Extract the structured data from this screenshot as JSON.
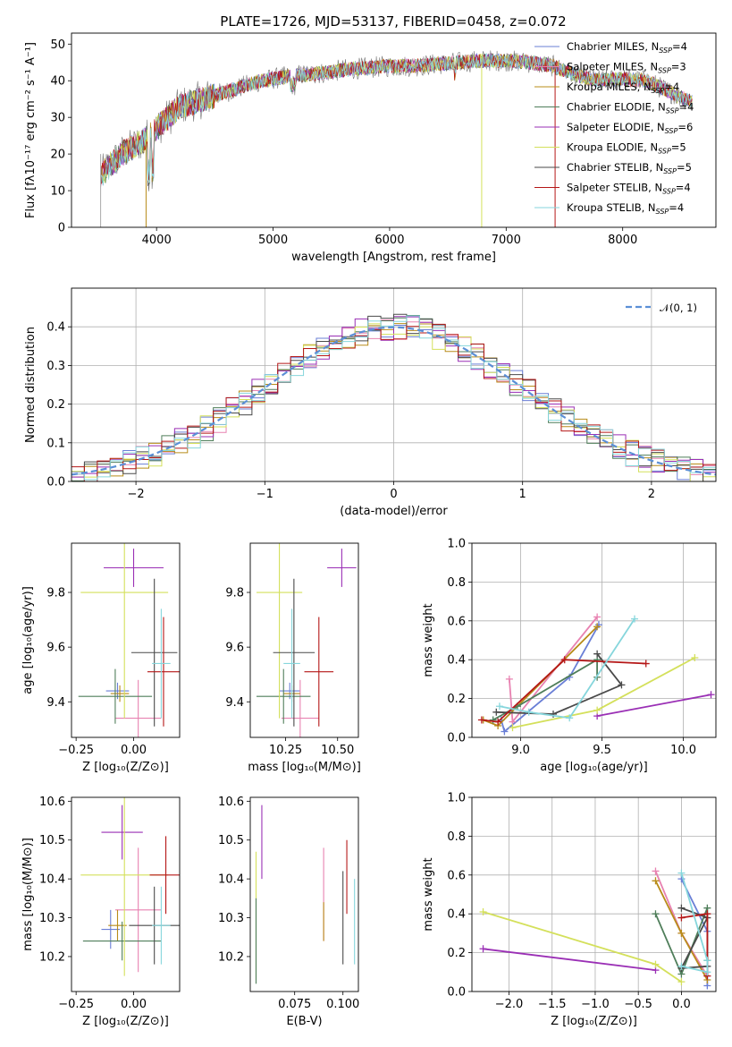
{
  "figure": {
    "title": "PLATE=1726, MJD=53137, FIBERID=0458, z=0.072"
  },
  "chart_data": [
    {
      "id": "spectrum",
      "type": "line",
      "xlabel": "wavelength [Angstrom, rest frame]",
      "ylabel": "Flux [fλ10⁻¹⁷ erg cm⁻² s⁻¹ A⁻¹]",
      "xlim": [
        3270,
        8800
      ],
      "ylim": [
        0,
        53
      ],
      "xticks": [
        4000,
        5000,
        6000,
        7000,
        8000
      ],
      "yticks": [
        0,
        10,
        20,
        30,
        40,
        50
      ],
      "legend_position": "upper right",
      "continuum": {
        "x": [
          3520,
          3600,
          3700,
          3800,
          3900,
          4000,
          4100,
          4200,
          4300,
          4400,
          4500,
          4600,
          4700,
          4800,
          4900,
          5000,
          5200,
          5400,
          5600,
          5800,
          6000,
          6200,
          6400,
          6600,
          6800,
          7000,
          7200,
          7400,
          7600,
          7800,
          8000,
          8200,
          8400,
          8600
        ],
        "y": [
          14,
          17,
          20,
          22,
          24,
          27,
          30,
          33,
          34,
          35,
          36,
          37,
          38,
          39,
          40,
          40.5,
          41.5,
          42,
          43,
          43.5,
          44,
          44,
          44.5,
          45,
          45.5,
          45.5,
          45,
          44,
          41.5,
          40,
          40.5,
          40,
          37,
          34
        ]
      },
      "series": [
        {
          "name": "Chabrier MILES, N_SSP=4",
          "label": "Chabrier MILES, N",
          "n": "4",
          "color": "#6a7fd6"
        },
        {
          "name": "Salpeter MILES, N_SSP=3",
          "label": "Salpeter MILES, N",
          "n": "3",
          "color": "#e882b1"
        },
        {
          "name": "Kroupa MILES, N_SSP=4",
          "label": "Kroupa MILES, N",
          "n": "4",
          "color": "#b88c1a"
        },
        {
          "name": "Chabrier ELODIE, N_SSP=4",
          "label": "Chabrier ELODIE, N",
          "n": "4",
          "color": "#4f7e5a"
        },
        {
          "name": "Salpeter ELODIE, N_SSP=6",
          "label": "Salpeter ELODIE, N",
          "n": "6",
          "color": "#9a2fb5"
        },
        {
          "name": "Kroupa ELODIE, N_SSP=5",
          "label": "Kroupa ELODIE, N",
          "n": "5",
          "color": "#d4e05b"
        },
        {
          "name": "Chabrier STELIB, N_SSP=5",
          "label": "Chabrier STELIB, N",
          "n": "5",
          "color": "#4a4a4a"
        },
        {
          "name": "Salpeter STELIB, N_SSP=4",
          "label": "Salpeter STELIB, N",
          "n": "4",
          "color": "#b51717"
        },
        {
          "name": "Kroupa STELIB, N_SSP=4",
          "label": "Kroupa STELIB, N",
          "n": "4",
          "color": "#86d6dc"
        }
      ],
      "legend_sub": "SSP"
    },
    {
      "id": "residuals",
      "type": "line",
      "xlabel": "(data-model)/error",
      "ylabel": "Normed distribution",
      "xlim": [
        -2.5,
        2.5
      ],
      "ylim": [
        0,
        0.5
      ],
      "xticks": [
        -2,
        -1,
        0,
        1,
        2
      ],
      "yticks": [
        0.0,
        0.1,
        0.2,
        0.3,
        0.4
      ],
      "grid": true,
      "legend_label": "𝒩(0, 1)",
      "legend_position": "upper right"
    },
    {
      "id": "Z-age",
      "type": "scatter",
      "xlabel": "Z [log₁₀(Z/Z⊙)]",
      "ylabel": "age  [log₁₀(age/yr)]",
      "xlim": [
        -0.27,
        0.2
      ],
      "ylim": [
        9.27,
        9.98
      ],
      "xticks": [
        -0.25,
        0.0
      ],
      "yticks": [
        9.4,
        9.6,
        9.8
      ],
      "points": [
        {
          "c": 0,
          "x": -0.07,
          "y": 9.44,
          "xe": 0.05,
          "ye": 0.03
        },
        {
          "c": 1,
          "x": 0.02,
          "y": 9.34,
          "xe": 0.1,
          "ye": 0.14
        },
        {
          "c": 2,
          "x": -0.06,
          "y": 9.43,
          "xe": 0.04,
          "ye": 0.03
        },
        {
          "c": 3,
          "x": -0.08,
          "y": 9.42,
          "xe": 0.16,
          "ye": 0.1
        },
        {
          "c": 4,
          "x": 0.0,
          "y": 9.89,
          "xe": 0.13,
          "ye": 0.07
        },
        {
          "c": 5,
          "x": -0.04,
          "y": 9.8,
          "xe": 0.19,
          "ye": 0.46
        },
        {
          "c": 6,
          "x": 0.09,
          "y": 9.58,
          "xe": 0.1,
          "ye": 0.27
        },
        {
          "c": 7,
          "x": 0.13,
          "y": 9.51,
          "xe": 0.07,
          "ye": 0.2
        },
        {
          "c": 8,
          "x": 0.12,
          "y": 9.54,
          "xe": 0.04,
          "ye": 0.2
        }
      ]
    },
    {
      "id": "mass-age",
      "type": "scatter",
      "xlabel": "mass [log₁₀(M/M⊙)]",
      "ylabel": "",
      "xlim": [
        10.08,
        10.6
      ],
      "ylim": [
        9.27,
        9.98
      ],
      "xticks": [
        10.25,
        10.5
      ],
      "yticks": [
        9.4,
        9.6,
        9.8
      ],
      "points": [
        {
          "c": 0,
          "x": 10.27,
          "y": 9.44,
          "xe": 0.05,
          "ye": 0.03
        },
        {
          "c": 1,
          "x": 10.32,
          "y": 9.34,
          "xe": 0.09,
          "ye": 0.14
        },
        {
          "c": 2,
          "x": 10.28,
          "y": 9.43,
          "xe": 0.04,
          "ye": 0.03
        },
        {
          "c": 3,
          "x": 10.24,
          "y": 9.42,
          "xe": 0.13,
          "ye": 0.1
        },
        {
          "c": 4,
          "x": 10.52,
          "y": 9.89,
          "xe": 0.07,
          "ye": 0.07
        },
        {
          "c": 5,
          "x": 10.22,
          "y": 9.8,
          "xe": 0.11,
          "ye": 0.46
        },
        {
          "c": 6,
          "x": 10.29,
          "y": 9.58,
          "xe": 0.1,
          "ye": 0.27
        },
        {
          "c": 7,
          "x": 10.41,
          "y": 9.51,
          "xe": 0.07,
          "ye": 0.2
        },
        {
          "c": 8,
          "x": 10.28,
          "y": 9.54,
          "xe": 0.04,
          "ye": 0.2
        }
      ]
    },
    {
      "id": "age-weight",
      "type": "line",
      "xlabel": "age  [log₁₀(age/yr)]",
      "ylabel": "mass weight",
      "xlim": [
        8.7,
        10.2
      ],
      "ylim": [
        0,
        1
      ],
      "xticks": [
        9.0,
        9.5,
        10.0
      ],
      "yticks": [
        0.0,
        0.2,
        0.4,
        0.6,
        0.8,
        1.0
      ],
      "grid": true,
      "series": [
        {
          "c": 0,
          "x": [
            8.88,
            8.9,
            9.3,
            9.48
          ],
          "y": [
            0.09,
            0.03,
            0.31,
            0.58
          ]
        },
        {
          "c": 1,
          "x": [
            8.93,
            8.95,
            9.47
          ],
          "y": [
            0.3,
            0.08,
            0.62
          ]
        },
        {
          "c": 2,
          "x": [
            8.77,
            8.86,
            9.47
          ],
          "y": [
            0.09,
            0.06,
            0.57
          ]
        },
        {
          "c": 3,
          "x": [
            8.83,
            8.98,
            9.47,
            9.47
          ],
          "y": [
            0.09,
            0.16,
            0.4,
            0.31
          ]
        },
        {
          "c": 4,
          "x": [
            9.47,
            10.17
          ],
          "y": [
            0.11,
            0.22
          ]
        },
        {
          "c": 5,
          "x": [
            8.95,
            9.47,
            10.07
          ],
          "y": [
            0.05,
            0.14,
            0.41
          ]
        },
        {
          "c": 6,
          "x": [
            8.85,
            9.2,
            9.62,
            9.47
          ],
          "y": [
            0.13,
            0.12,
            0.27,
            0.43
          ]
        },
        {
          "c": 7,
          "x": [
            8.76,
            8.86,
            9.27,
            9.77
          ],
          "y": [
            0.09,
            0.08,
            0.4,
            0.38
          ]
        },
        {
          "c": 8,
          "x": [
            8.87,
            9.05,
            9.3,
            9.7
          ],
          "y": [
            0.16,
            0.13,
            0.1,
            0.61
          ]
        }
      ]
    },
    {
      "id": "Z-mass",
      "type": "scatter",
      "xlabel": "Z [log₁₀(Z/Z⊙)]",
      "ylabel": "mass [log₁₀(M/M⊙)]",
      "xlim": [
        -0.27,
        0.2
      ],
      "ylim": [
        10.11,
        10.61
      ],
      "xticks": [
        -0.25,
        0.0
      ],
      "yticks": [
        10.2,
        10.3,
        10.4,
        10.5,
        10.6
      ],
      "points": [
        {
          "c": 0,
          "x": -0.1,
          "y": 10.27,
          "xe": 0.04,
          "ye": 0.05
        },
        {
          "c": 1,
          "x": 0.02,
          "y": 10.32,
          "xe": 0.1,
          "ye": 0.16
        },
        {
          "c": 2,
          "x": -0.07,
          "y": 10.28,
          "xe": 0.04,
          "ye": 0.04
        },
        {
          "c": 3,
          "x": -0.05,
          "y": 10.24,
          "xe": 0.17,
          "ye": 0.05
        },
        {
          "c": 4,
          "x": -0.05,
          "y": 10.52,
          "xe": 0.09,
          "ye": 0.07
        },
        {
          "c": 5,
          "x": -0.04,
          "y": 10.41,
          "xe": 0.19,
          "ye": 0.26
        },
        {
          "c": 6,
          "x": 0.09,
          "y": 10.28,
          "xe": 0.11,
          "ye": 0.1
        },
        {
          "c": 7,
          "x": 0.14,
          "y": 10.41,
          "xe": 0.07,
          "ye": 0.1
        },
        {
          "c": 8,
          "x": 0.12,
          "y": 10.28,
          "xe": 0.04,
          "ye": 0.1
        }
      ]
    },
    {
      "id": "ebv-mass",
      "type": "scatter",
      "xlabel": "E(B-V)",
      "ylabel": "",
      "xlim": [
        0.052,
        0.108
      ],
      "ylim": [
        10.11,
        10.61
      ],
      "xticks": [
        0.075,
        0.1
      ],
      "yticks": [
        10.2,
        10.3,
        10.4,
        10.5,
        10.6
      ],
      "points": [
        {
          "c": 4,
          "y0": 10.4,
          "y1": 10.59,
          "x": 0.058
        },
        {
          "c": 5,
          "y0": 10.14,
          "y1": 10.47,
          "x": 0.055
        },
        {
          "c": 3,
          "y0": 10.13,
          "y1": 10.35,
          "x": 0.055
        },
        {
          "c": 1,
          "y0": 10.24,
          "y1": 10.48,
          "x": 0.09
        },
        {
          "c": 2,
          "y0": 10.24,
          "y1": 10.34,
          "x": 0.09
        },
        {
          "c": 6,
          "y0": 10.18,
          "y1": 10.42,
          "x": 0.1
        },
        {
          "c": 7,
          "y0": 10.31,
          "y1": 10.5,
          "x": 0.102
        },
        {
          "c": 8,
          "y0": 10.18,
          "y1": 10.4,
          "x": 0.106
        }
      ]
    },
    {
      "id": "Z-weight",
      "type": "line",
      "xlabel": "Z [log₁₀(Z/Z⊙)]",
      "ylabel": "mass weight",
      "xlim": [
        -2.43,
        0.4
      ],
      "ylim": [
        0,
        1
      ],
      "xticks": [
        -2.0,
        -1.5,
        -1.0,
        -0.5,
        0.0
      ],
      "yticks": [
        0.0,
        0.2,
        0.4,
        0.6,
        0.8,
        1.0
      ],
      "grid": true,
      "series": [
        {
          "c": 0,
          "x": [
            0.0,
            0.3,
            0.3
          ],
          "y": [
            0.58,
            0.31,
            0.03
          ]
        },
        {
          "c": 1,
          "x": [
            -0.3,
            0.0,
            0.3
          ],
          "y": [
            0.62,
            0.3,
            0.08
          ]
        },
        {
          "c": 2,
          "x": [
            -0.3,
            0.0,
            0.3
          ],
          "y": [
            0.57,
            0.3,
            0.06
          ]
        },
        {
          "c": 3,
          "x": [
            -0.3,
            0.0,
            0.3,
            0.3
          ],
          "y": [
            0.4,
            0.09,
            0.43,
            0.16
          ]
        },
        {
          "c": 4,
          "x": [
            -2.3,
            -0.3
          ],
          "y": [
            0.22,
            0.11
          ]
        },
        {
          "c": 5,
          "x": [
            -2.3,
            -0.3,
            0.0
          ],
          "y": [
            0.41,
            0.14,
            0.05
          ]
        },
        {
          "c": 6,
          "x": [
            0.0,
            0.3,
            0.0,
            0.3
          ],
          "y": [
            0.43,
            0.38,
            0.12,
            0.13
          ]
        },
        {
          "c": 7,
          "x": [
            0.0,
            0.3,
            0.3
          ],
          "y": [
            0.38,
            0.4,
            0.08
          ]
        },
        {
          "c": 8,
          "x": [
            0.0,
            0.3,
            0.3,
            0.0
          ],
          "y": [
            0.61,
            0.16,
            0.1,
            0.13
          ]
        }
      ]
    }
  ]
}
